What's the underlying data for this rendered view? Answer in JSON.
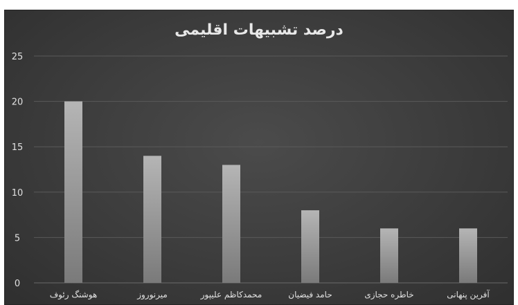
{
  "chart_data": {
    "type": "bar",
    "title": "درصد تشبیهات اقلیمی",
    "categories": [
      "هوشنگ رئوف",
      "میرنوروز",
      "محمدکاظم علیپور",
      "حامد فیضیان",
      "خاطره حجازی",
      "آفرین پنهانی"
    ],
    "values": [
      20,
      14,
      13,
      8,
      6,
      6
    ],
    "ylim": [
      0,
      25
    ],
    "yticks": [
      0,
      5,
      10,
      15,
      20,
      25
    ],
    "xlabel": "",
    "ylabel": "",
    "grid": true,
    "legend": "none",
    "colors": {
      "background": "#3e3e3e",
      "bar_top": "#b5b5b5",
      "bar_bottom": "#7a7a7a",
      "grid": "#5a5a5a",
      "text": "#e0e0e0"
    }
  }
}
